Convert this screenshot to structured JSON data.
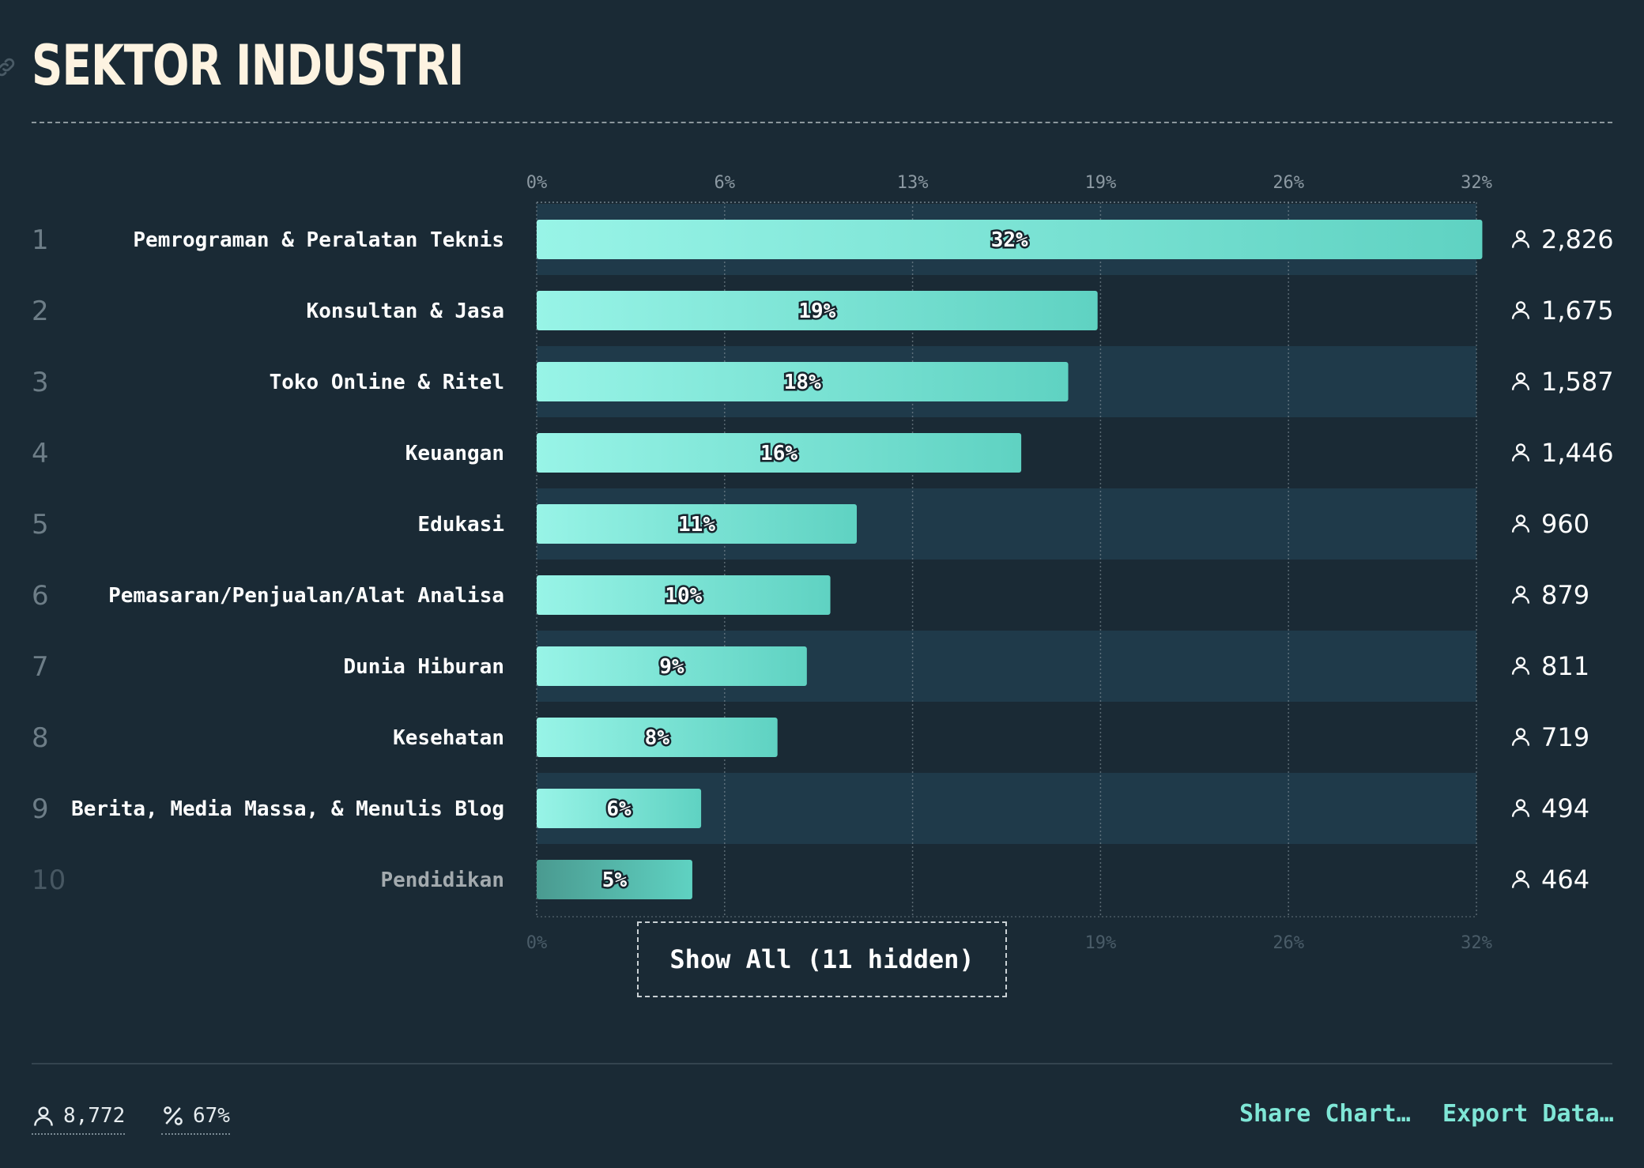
{
  "page": {
    "title": "SEKTOR INDUSTRI",
    "show_all_label": "Show All (11 hidden)",
    "share_label": "Share Chart…",
    "export_label": "Export Data…",
    "total_respondents": "8,772",
    "response_rate": "67%"
  },
  "colors": {
    "background": "#1a2a35",
    "band": "#1f3a4a",
    "bar_start": "#98f4e7",
    "bar_end": "#5fd2c2",
    "bar_faded": "#4a9a90",
    "accent": "#7fe6d6"
  },
  "chart_data": {
    "type": "bar",
    "orientation": "horizontal",
    "title": "SEKTOR INDUSTRI",
    "xlim": [
      0,
      32
    ],
    "x_ticks": [
      "0%",
      "6%",
      "13%",
      "19%",
      "26%",
      "32%"
    ],
    "grid": true,
    "categories": [
      "Pemrograman & Peralatan Teknis",
      "Konsultan & Jasa",
      "Toko Online & Ritel",
      "Keuangan",
      "Edukasi",
      "Pemasaran/Penjualan/Alat Analisa",
      "Dunia Hiburan",
      "Kesehatan",
      "Berita, Media Massa, & Menulis Blog",
      "Pendidikan"
    ],
    "values": [
      32.2,
      19.1,
      18.1,
      16.5,
      10.9,
      10.0,
      9.2,
      8.2,
      5.6,
      5.3
    ],
    "value_labels": [
      "32%",
      "19%",
      "18%",
      "16%",
      "11%",
      "10%",
      "9%",
      "8%",
      "6%",
      "5%"
    ],
    "counts": [
      "2,826",
      "1,675",
      "1,587",
      "1,446",
      "960",
      "879",
      "811",
      "719",
      "494",
      "464"
    ],
    "ranks": [
      "1",
      "2",
      "3",
      "4",
      "5",
      "6",
      "7",
      "8",
      "9",
      "10"
    ]
  }
}
